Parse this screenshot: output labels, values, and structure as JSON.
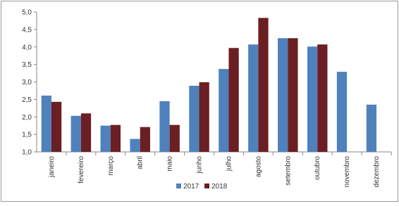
{
  "chart_data": {
    "type": "bar",
    "categories": [
      "janeiro",
      "fevereiro",
      "março",
      "abril",
      "maio",
      "junho",
      "julho",
      "agosto",
      "setembro",
      "outubro",
      "novembro",
      "dezembro"
    ],
    "series": [
      {
        "name": "2017",
        "color": "#4f81bd",
        "values": [
          2.61,
          2.03,
          1.75,
          1.37,
          2.45,
          2.89,
          3.37,
          4.07,
          4.25,
          4.01,
          3.29,
          2.35
        ]
      },
      {
        "name": "2018",
        "color": "#6b1f22",
        "values": [
          2.43,
          2.1,
          1.77,
          1.71,
          1.77,
          2.99,
          3.97,
          4.83,
          4.25,
          4.07,
          null,
          null
        ]
      }
    ],
    "ylim": [
      1,
      5
    ],
    "yticks": [
      {
        "value": 1,
        "label": "1,0"
      },
      {
        "value": 1.5,
        "label": "1,5"
      },
      {
        "value": 2,
        "label": "2,0"
      },
      {
        "value": 2.5,
        "label": "2,5"
      },
      {
        "value": 3,
        "label": "3,0"
      },
      {
        "value": 3.5,
        "label": "3,5"
      },
      {
        "value": 4,
        "label": "4,0"
      },
      {
        "value": 4.5,
        "label": "4,5"
      },
      {
        "value": 5,
        "label": "5,0"
      }
    ],
    "legend": "bottom"
  }
}
